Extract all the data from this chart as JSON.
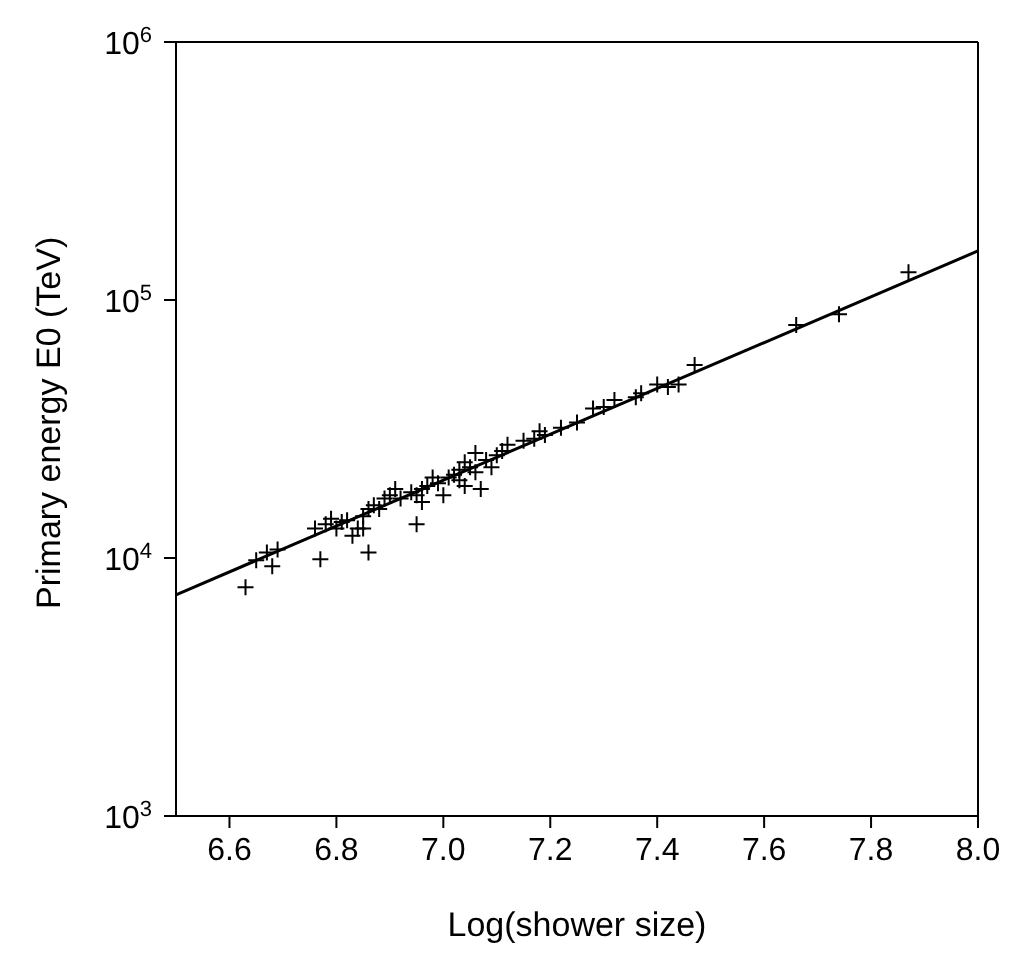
{
  "chart_data": {
    "type": "scatter",
    "xlabel": "Log(shower size)",
    "ylabel": "Primary energy E0 (TeV)",
    "log": "y",
    "xlim": [
      6.5,
      8.0
    ],
    "xticks": [
      6.6,
      6.8,
      {
        "value": 7,
        "label": "7.0"
      },
      7.2,
      7.4,
      7.6,
      7.8,
      {
        "value": 8,
        "label": "8.0"
      }
    ],
    "ylim": [
      1000,
      1000000
    ],
    "yticks": [
      {
        "value": 1000,
        "label": "10$^{3}$"
      },
      {
        "value": 10000,
        "label": "10$^{4}$"
      },
      {
        "value": 100000,
        "label": "10$^{5}$"
      },
      {
        "value": 1000000,
        "label": "10$^{6}$"
      }
    ],
    "series": [
      {
        "marker": "cross",
        "color": "#000000",
        "x": [
          6.63,
          6.65,
          6.67,
          6.68,
          6.69,
          6.77,
          6.76,
          6.78,
          6.79,
          6.8,
          6.81,
          6.82,
          6.83,
          6.84,
          6.85,
          6.85,
          6.86,
          6.86,
          6.87,
          6.88,
          6.89,
          6.9,
          6.91,
          6.92,
          6.94,
          6.95,
          6.95,
          6.96,
          6.96,
          6.97,
          6.98,
          6.99,
          7.0,
          7.01,
          7.02,
          7.03,
          7.03,
          7.04,
          7.04,
          7.05,
          7.06,
          7.06,
          7.07,
          7.08,
          7.09,
          7.1,
          7.11,
          7.12,
          7.15,
          7.17,
          7.18,
          7.19,
          7.22,
          7.25,
          7.28,
          7.3,
          7.32,
          7.36,
          7.37,
          7.4,
          7.42,
          7.44,
          7.47,
          7.66,
          7.74,
          7.87
        ],
        "values": [
          7700,
          9800,
          10500,
          9300,
          10800,
          9900,
          13000,
          13500,
          14200,
          13000,
          13800,
          14000,
          12200,
          13000,
          14500,
          13000,
          10500,
          15500,
          16000,
          15500,
          17000,
          17500,
          18500,
          17000,
          18000,
          13500,
          17500,
          18500,
          16500,
          19000,
          20500,
          19500,
          17500,
          20500,
          21000,
          22000,
          20000,
          23500,
          19000,
          22500,
          21500,
          25500,
          18500,
          24000,
          22500,
          25000,
          26000,
          27500,
          28500,
          29000,
          31000,
          30000,
          32000,
          33500,
          38000,
          38500,
          41000,
          42000,
          43500,
          47000,
          46000,
          47000,
          56000,
          80000,
          88000,
          128000
        ]
      },
      {
        "type": "line",
        "color": "#000000",
        "x": [
          6.5,
          8.0
        ],
        "values": [
          7200,
          155000
        ]
      }
    ]
  }
}
